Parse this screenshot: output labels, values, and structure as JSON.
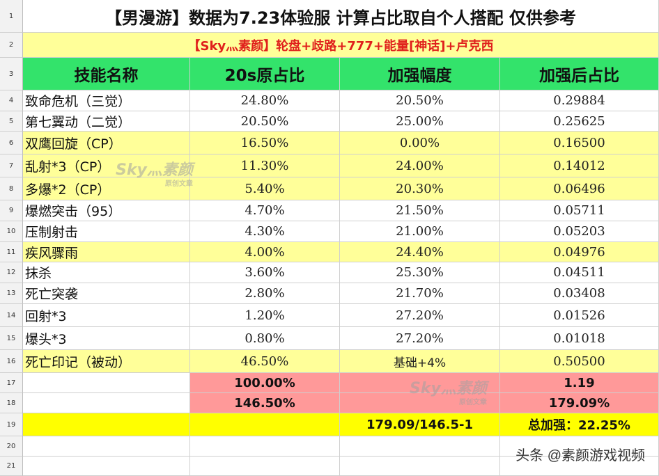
{
  "title": "【男漫游】数据为7.23体验服 计算占比取自个人搭配 仅供参考",
  "subtitle": "【Sky灬素颜】轮盘+歧路+777+能量[神话]+卢克西",
  "headers": [
    "技能名称",
    "20s原占比",
    "加强幅度",
    "加强后占比"
  ],
  "rows": [
    {
      "name": "致命危机（三觉）",
      "ratio": "24.80%",
      "boost": "20.50%",
      "after": "0.29884"
    },
    {
      "name": "第七翼动（二觉）",
      "ratio": "20.50%",
      "boost": "25.00%",
      "after": "0.25625"
    },
    {
      "name": "双鹰回旋（CP）",
      "ratio": "16.50%",
      "boost": "0.00%",
      "after": "0.16500"
    },
    {
      "name": "乱射*3（CP）",
      "ratio": "11.30%",
      "boost": "24.00%",
      "after": "0.14012"
    },
    {
      "name": "多爆*2（CP）",
      "ratio": "5.40%",
      "boost": "20.30%",
      "after": "0.06496"
    },
    {
      "name": "爆燃突击（95）",
      "ratio": "4.70%",
      "boost": "21.50%",
      "after": "0.05711"
    },
    {
      "name": "压制射击",
      "ratio": "4.30%",
      "boost": "21.00%",
      "after": "0.05203"
    },
    {
      "name": "疾风骤雨",
      "ratio": "4.00%",
      "boost": "24.40%",
      "after": "0.04976"
    },
    {
      "name": "抹杀",
      "ratio": "3.60%",
      "boost": "25.30%",
      "after": "0.04511"
    },
    {
      "name": "死亡突袭",
      "ratio": "2.80%",
      "boost": "21.70%",
      "after": "0.03408"
    },
    {
      "name": "回射*3",
      "ratio": "1.20%",
      "boost": "27.20%",
      "after": "0.01526"
    },
    {
      "name": "爆头*3",
      "ratio": "0.80%",
      "boost": "27.20%",
      "after": "0.01018"
    },
    {
      "name": "死亡印记（被动）",
      "ratio": "46.50%",
      "boost": "基础+4%",
      "after": "0.50500"
    }
  ],
  "totals": {
    "row17_ratio": "100.00%",
    "row17_after": "1.19",
    "row18_ratio": "146.50%",
    "row18_after": "179.09%",
    "row19_formula": "179.09/146.5-1",
    "row19_total": "总加强：22.25%"
  },
  "row_numbers": [
    "1",
    "2",
    "3",
    "4",
    "5",
    "6",
    "7",
    "8",
    "9",
    "10",
    "11",
    "12",
    "13",
    "14",
    "15",
    "16",
    "17",
    "18",
    "19",
    "20",
    "21"
  ],
  "watermarks": [
    {
      "text": "Sky灬素颜",
      "sub": "原创文章"
    },
    {
      "text": "Sky灬素颜",
      "sub": "原创文章"
    }
  ],
  "footer": "头条 @素颜游戏视频",
  "colors": {
    "title_bg": "#ffffff",
    "subtitle_bg": "#ffff99",
    "header_bg": "#33e36b",
    "highlight_row_bg": "#ffff99",
    "sum_bg": "#ff9999",
    "total_row_bg": "#ffff00",
    "subtitle_text": "#e0201c"
  }
}
